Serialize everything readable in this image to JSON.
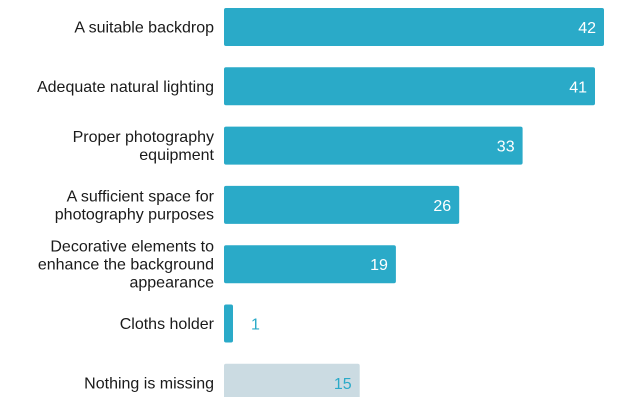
{
  "chart_data": {
    "type": "bar",
    "orientation": "horizontal",
    "title": "",
    "xlabel": "",
    "ylabel": "",
    "categories": [
      [
        "A suitable backdrop"
      ],
      [
        "Adequate natural lighting"
      ],
      [
        "Proper photography",
        "equipment"
      ],
      [
        "A sufficient space for",
        "photography purposes"
      ],
      [
        "Decorative elements to",
        "enhance the background",
        "appearance"
      ],
      [
        "Cloths holder"
      ],
      [
        "Nothing is missing"
      ]
    ],
    "values": [
      42,
      41,
      33,
      26,
      19,
      1,
      15
    ],
    "xlim": [
      0,
      42
    ],
    "grid": false,
    "legend": "none",
    "colors": {
      "bar": "#2aaac8",
      "bar_muted": "#cbdbe2",
      "label_inside": "#ffffff",
      "label_outside": "#2aaac8",
      "category_text": "#1a1a1a"
    },
    "muted_index": 6
  }
}
